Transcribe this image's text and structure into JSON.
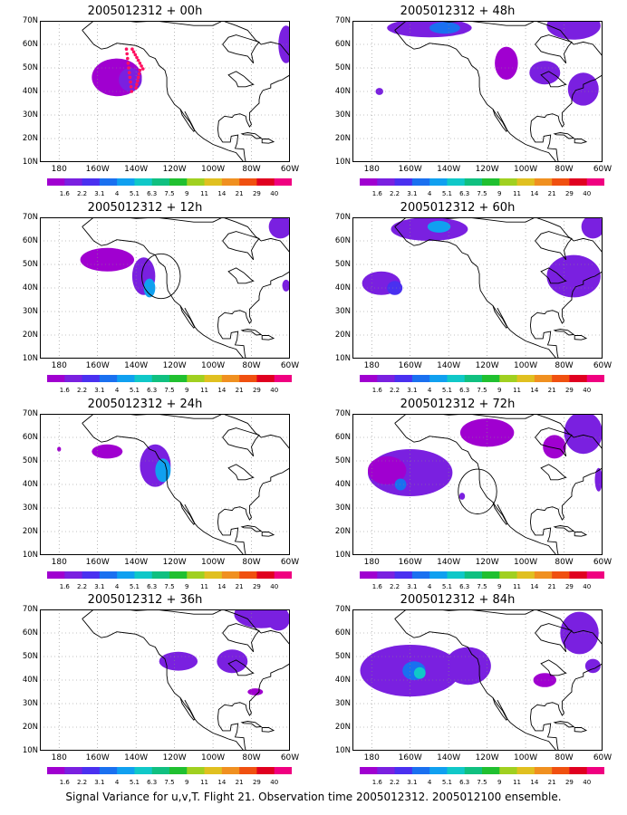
{
  "panels": [
    {
      "title": "2005012312 + 00h"
    },
    {
      "title": "2005012312 + 48h"
    },
    {
      "title": "2005012312 + 12h"
    },
    {
      "title": "2005012312 + 60h"
    },
    {
      "title": "2005012312 + 24h"
    },
    {
      "title": "2005012312 + 72h"
    },
    {
      "title": "2005012312 + 36h"
    },
    {
      "title": "2005012312 + 84h"
    }
  ],
  "y_ticks": [
    "70N",
    "60N",
    "50N",
    "40N",
    "30N",
    "20N",
    "10N"
  ],
  "x_ticks": [
    "180",
    "160W",
    "140W",
    "120W",
    "100W",
    "80W",
    "60W"
  ],
  "colorbar": {
    "labels": [
      "1.6",
      "2.2",
      "3.1",
      "4",
      "5.1",
      "6.3",
      "7.5",
      "9",
      "11",
      "14",
      "21",
      "29",
      "40"
    ],
    "colors": [
      "#a000d0",
      "#7a20e0",
      "#4a30f0",
      "#1a70f0",
      "#10a0f0",
      "#10c8c8",
      "#10c080",
      "#20c030",
      "#a0d020",
      "#e0c020",
      "#f09020",
      "#f05010",
      "#e00020",
      "#f00080"
    ]
  },
  "caption": "Signal Variance for u,v,T. Flight 21. Observation time 2005012312. 2005012100 ensemble."
}
